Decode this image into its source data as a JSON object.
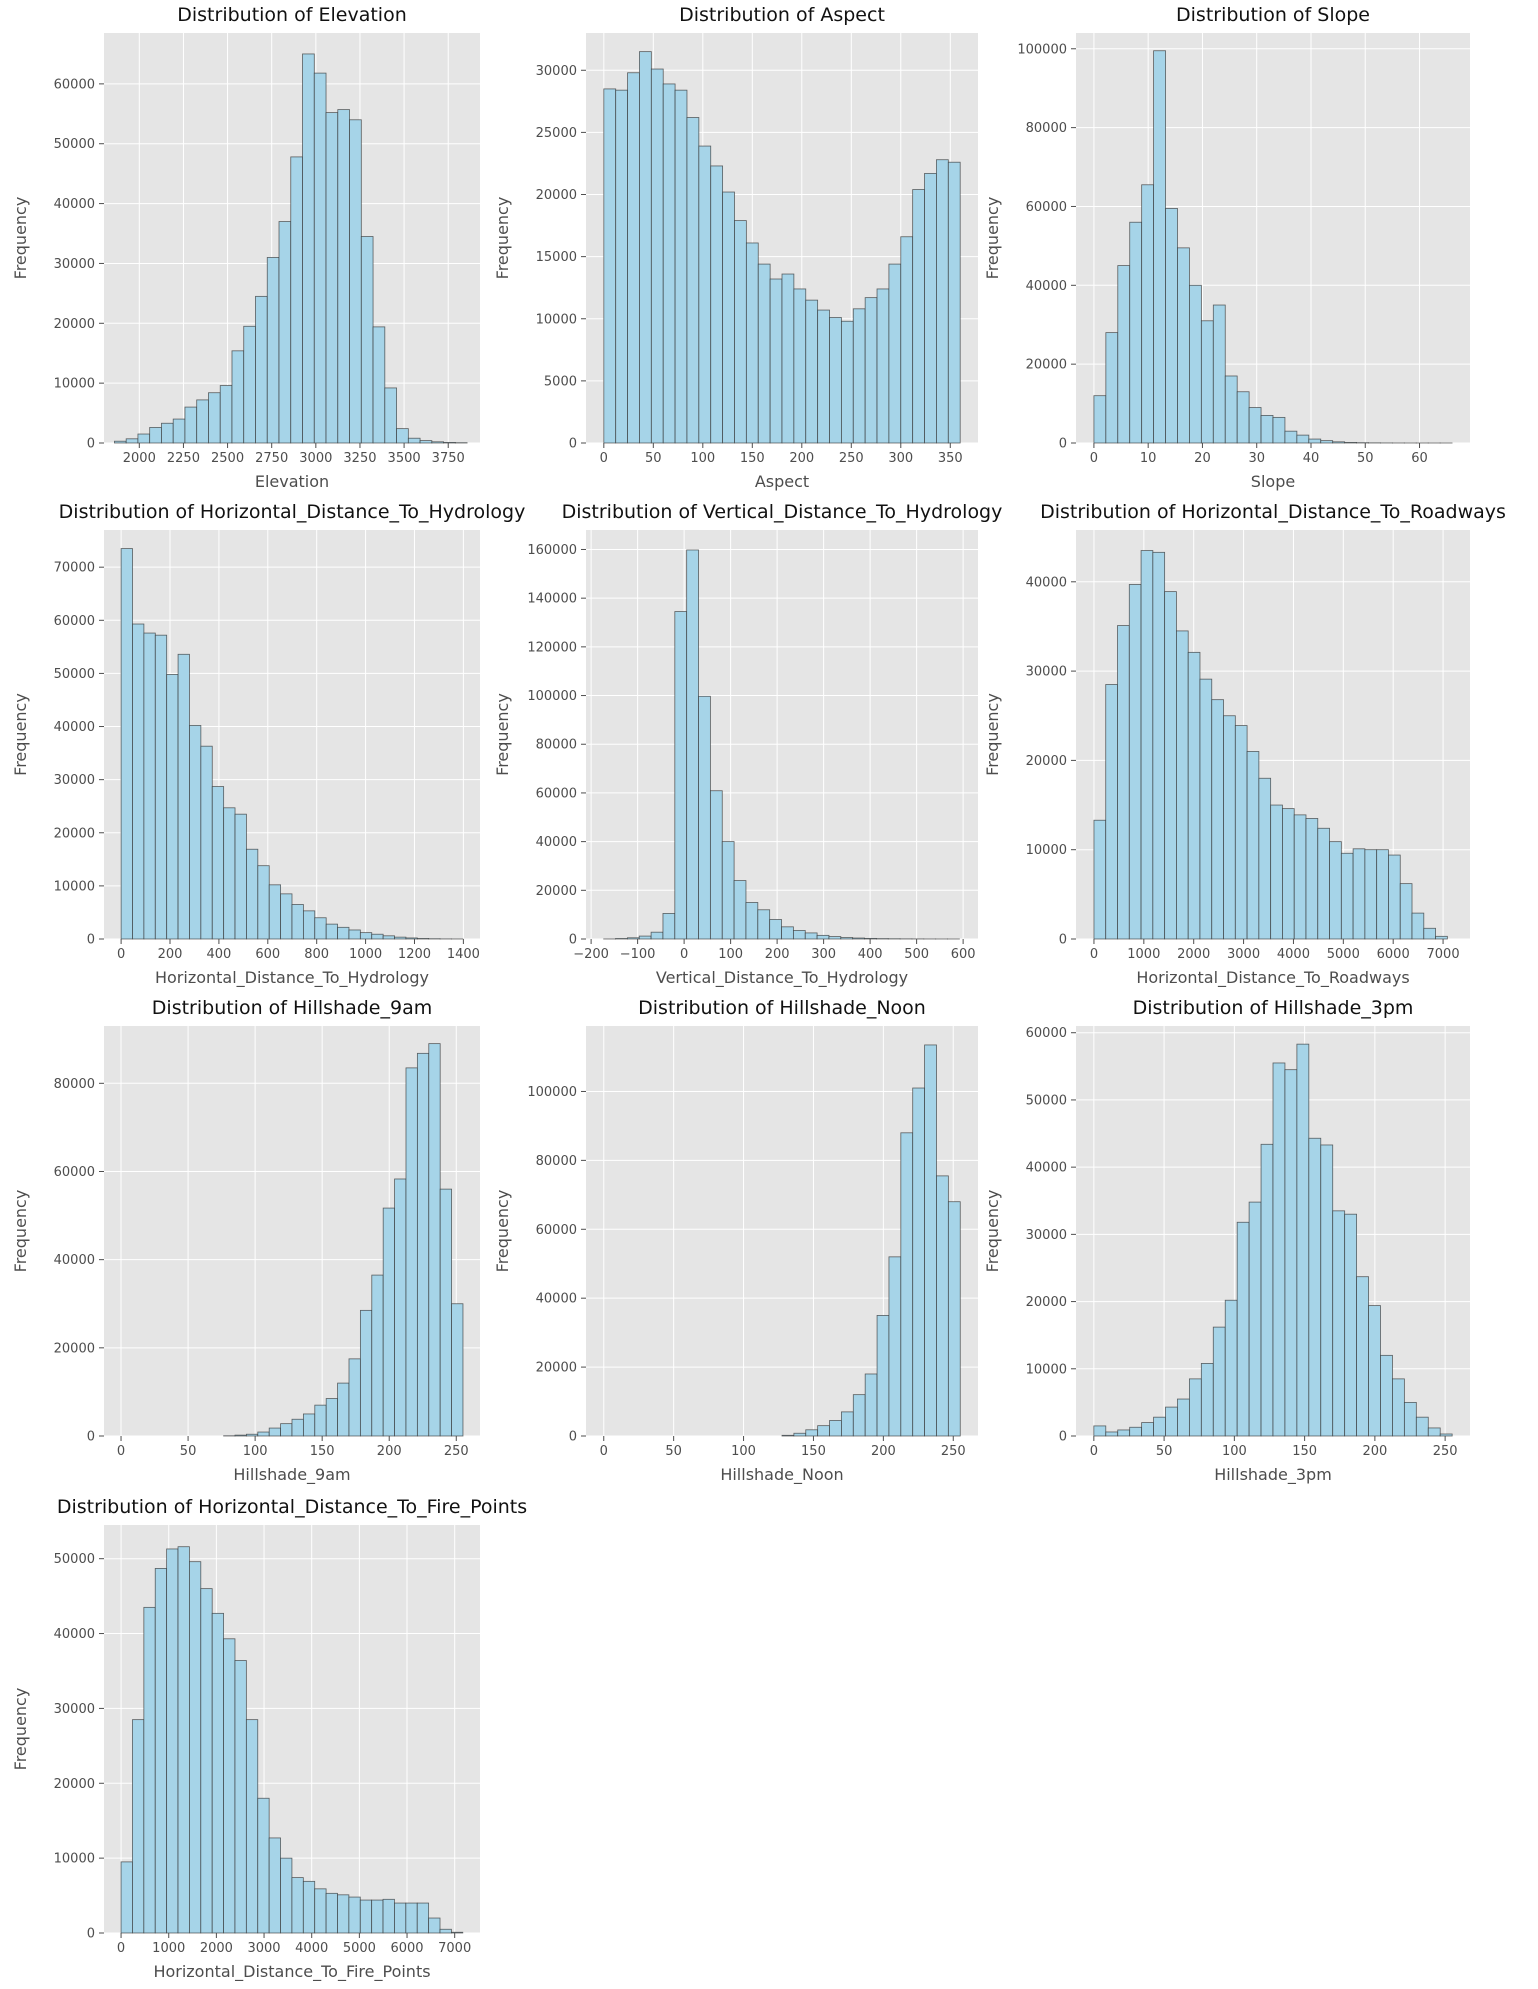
{
  "figure": {
    "bar_color": "#a6d4e8",
    "edge_color": "#333333",
    "panel_bg": "#e5e5e5",
    "grid_color": "#ffffff",
    "text_color": "#4d4d4d"
  },
  "chart_data": [
    {
      "type": "bar",
      "title": "Distribution of Elevation",
      "xlabel": "Elevation",
      "ylabel": "Frequency",
      "xlim": [
        1800,
        3930
      ],
      "ylim": [
        0,
        68500
      ],
      "xticks": [
        2000,
        2250,
        2500,
        2750,
        3000,
        3250,
        3500,
        3750
      ],
      "xtick_labels": [
        "2000",
        "2250",
        "2500",
        "2750",
        "3000",
        "3250",
        "3500",
        "3750"
      ],
      "yticks": [
        0,
        10000,
        20000,
        30000,
        40000,
        50000,
        60000
      ],
      "ytick_labels": [
        "0",
        "10000",
        "20000",
        "30000",
        "40000",
        "50000",
        "60000"
      ],
      "bin_start": 1859,
      "bin_width": 66.6,
      "values": [
        300,
        700,
        1500,
        2600,
        3300,
        4000,
        6000,
        7200,
        8400,
        9600,
        15400,
        19500,
        24500,
        31000,
        37000,
        47800,
        65000,
        61800,
        55200,
        55700,
        54000,
        34500,
        19400,
        9200,
        2400,
        800,
        400,
        200,
        100,
        50
      ]
    },
    {
      "type": "bar",
      "title": "Distribution of Aspect",
      "xlabel": "Aspect",
      "ylabel": "Frequency",
      "xlim": [
        -18,
        378
      ],
      "ylim": [
        0,
        33000
      ],
      "xticks": [
        0,
        50,
        100,
        150,
        200,
        250,
        300,
        350
      ],
      "xtick_labels": [
        "0",
        "50",
        "100",
        "150",
        "200",
        "250",
        "300",
        "350"
      ],
      "yticks": [
        0,
        5000,
        10000,
        15000,
        20000,
        25000,
        30000
      ],
      "ytick_labels": [
        "0",
        "5000",
        "10000",
        "15000",
        "20000",
        "25000",
        "30000"
      ],
      "bin_start": 0,
      "bin_width": 12,
      "values": [
        28500,
        28400,
        29800,
        31500,
        30100,
        28900,
        28400,
        26200,
        23900,
        22300,
        20200,
        17900,
        16100,
        14400,
        13200,
        13600,
        12400,
        11500,
        10700,
        10100,
        9800,
        10800,
        11700,
        12400,
        14400,
        16600,
        20400,
        21700,
        22800,
        22600
      ]
    },
    {
      "type": "bar",
      "title": "Distribution of Slope",
      "xlabel": "Slope",
      "ylabel": "Frequency",
      "xlim": [
        -3.3,
        69.3
      ],
      "ylim": [
        0,
        104000
      ],
      "xticks": [
        0,
        10,
        20,
        30,
        40,
        50,
        60
      ],
      "xtick_labels": [
        "0",
        "10",
        "20",
        "30",
        "40",
        "50",
        "60"
      ],
      "yticks": [
        0,
        20000,
        40000,
        60000,
        80000,
        100000
      ],
      "ytick_labels": [
        "0",
        "20000",
        "40000",
        "60000",
        "80000",
        "100000"
      ],
      "bin_start": 0,
      "bin_width": 2.2,
      "values": [
        12000,
        28000,
        45000,
        56000,
        65500,
        99500,
        59500,
        49500,
        40000,
        31000,
        35000,
        17000,
        13000,
        9000,
        7000,
        6500,
        3000,
        2000,
        1000,
        600,
        300,
        150,
        80,
        40,
        20,
        10,
        5,
        3,
        2,
        1
      ]
    },
    {
      "type": "bar",
      "title": "Distribution of Horizontal_Distance_To_Hydrology",
      "xlabel": "Horizontal_Distance_To_Hydrology",
      "ylabel": "Frequency",
      "xlim": [
        -70,
        1468
      ],
      "ylim": [
        0,
        77000
      ],
      "xticks": [
        0,
        200,
        400,
        600,
        800,
        1000,
        1200,
        1400
      ],
      "xtick_labels": [
        "0",
        "200",
        "400",
        "600",
        "800",
        "1000",
        "1200",
        "1400"
      ],
      "yticks": [
        0,
        10000,
        20000,
        30000,
        40000,
        50000,
        60000,
        70000
      ],
      "ytick_labels": [
        "0",
        "10000",
        "20000",
        "30000",
        "40000",
        "50000",
        "60000",
        "70000"
      ],
      "bin_start": 0,
      "bin_width": 46.6,
      "values": [
        73500,
        59300,
        57600,
        57200,
        49800,
        53600,
        40200,
        36300,
        28700,
        24700,
        23500,
        16900,
        13800,
        10200,
        8500,
        6500,
        5300,
        4000,
        2800,
        2200,
        1700,
        1200,
        900,
        600,
        350,
        200,
        100,
        50,
        20,
        10
      ]
    },
    {
      "type": "bar",
      "title": "Distribution of Vertical_Distance_To_Hydrology",
      "xlabel": "Vertical_Distance_To_Hydrology",
      "ylabel": "Frequency",
      "xlim": [
        -211,
        632
      ],
      "ylim": [
        0,
        168000
      ],
      "xticks": [
        -200,
        -100,
        0,
        100,
        200,
        300,
        400,
        500,
        600
      ],
      "xtick_labels": [
        "−200",
        "−100",
        "0",
        "100",
        "200",
        "300",
        "400",
        "500",
        "600"
      ],
      "yticks": [
        0,
        20000,
        40000,
        60000,
        80000,
        100000,
        120000,
        140000,
        160000
      ],
      "ytick_labels": [
        "0",
        "20000",
        "40000",
        "60000",
        "80000",
        "100000",
        "120000",
        "140000",
        "160000"
      ],
      "bin_start": -173,
      "bin_width": 25.5,
      "values": [
        20,
        200,
        500,
        1200,
        2800,
        10500,
        134500,
        159800,
        99700,
        60900,
        40000,
        24000,
        15000,
        12000,
        8000,
        5000,
        3500,
        2500,
        1500,
        1000,
        600,
        400,
        250,
        150,
        100,
        60,
        40,
        20,
        10,
        5
      ]
    },
    {
      "type": "bar",
      "title": "Distribution of Horizontal_Distance_To_Roadways",
      "xlabel": "Horizontal_Distance_To_Roadways",
      "ylabel": "Frequency",
      "xlim": [
        -360,
        7540
      ],
      "ylim": [
        0,
        45800
      ],
      "xticks": [
        0,
        1000,
        2000,
        3000,
        4000,
        5000,
        6000,
        7000
      ],
      "xtick_labels": [
        "0",
        "1000",
        "2000",
        "3000",
        "4000",
        "5000",
        "6000",
        "7000"
      ],
      "yticks": [
        0,
        10000,
        20000,
        30000,
        40000
      ],
      "ytick_logo": null,
      "ytick_labels": [
        "0",
        "10000",
        "20000",
        "30000",
        "40000"
      ],
      "bin_start": 0,
      "bin_width": 236.2,
      "values": [
        13300,
        28500,
        35100,
        39700,
        43500,
        43300,
        38900,
        34500,
        32100,
        29100,
        26800,
        25000,
        23900,
        21000,
        18000,
        15000,
        14600,
        13900,
        13500,
        12400,
        10900,
        9600,
        10100,
        10000,
        10000,
        9400,
        6200,
        2900,
        1200,
        300
      ]
    },
    {
      "type": "bar",
      "title": "Distribution of Hillshade_9am",
      "xlabel": "Hillshade_9am",
      "ylabel": "Frequency",
      "xlim": [
        -12.7,
        267.7
      ],
      "ylim": [
        0,
        93000
      ],
      "xticks": [
        0,
        50,
        100,
        150,
        200,
        250
      ],
      "xtick_labels": [
        "0",
        "50",
        "100",
        "150",
        "200",
        "250"
      ],
      "yticks": [
        0,
        20000,
        40000,
        60000,
        80000
      ],
      "ytick_labels": [
        "0",
        "20000",
        "40000",
        "60000",
        "80000"
      ],
      "bin_start": 0,
      "bin_width": 8.5,
      "values": [
        0,
        0,
        0,
        0,
        0,
        0,
        0,
        0,
        0,
        50,
        200,
        400,
        900,
        1800,
        2800,
        3800,
        5000,
        7000,
        8500,
        12000,
        17500,
        28500,
        36500,
        51700,
        58300,
        83500,
        86800,
        89000,
        56000,
        30000
      ]
    },
    {
      "type": "bar",
      "title": "Distribution of Hillshade_Noon",
      "xlabel": "Hillshade_Noon",
      "ylabel": "Frequency",
      "xlim": [
        -12.7,
        267.7
      ],
      "ylim": [
        0,
        119000
      ],
      "xticks": [
        0,
        50,
        100,
        150,
        200,
        250
      ],
      "xtick_labels": [
        "0",
        "50",
        "100",
        "150",
        "200",
        "250"
      ],
      "yticks": [
        0,
        20000,
        40000,
        60000,
        80000,
        100000
      ],
      "ytick_labels": [
        "0",
        "20000",
        "40000",
        "60000",
        "80000",
        "100000"
      ],
      "bin_start": 0,
      "bin_width": 8.5,
      "values": [
        0,
        0,
        0,
        0,
        0,
        0,
        0,
        0,
        0,
        0,
        0,
        0,
        0,
        0,
        0,
        200,
        800,
        1800,
        3000,
        4500,
        7000,
        12000,
        18000,
        35000,
        52000,
        88000,
        101000,
        113500,
        75500,
        68000
      ]
    },
    {
      "type": "bar",
      "title": "Distribution of Hillshade_3pm",
      "xlabel": "Hillshade_3pm",
      "ylabel": "Frequency",
      "xlim": [
        -12.7,
        267.7
      ],
      "ylim": [
        0,
        61000
      ],
      "xticks": [
        0,
        50,
        100,
        150,
        200,
        250
      ],
      "xtick_labels": [
        "0",
        "50",
        "100",
        "150",
        "200",
        "250"
      ],
      "yticks": [
        0,
        10000,
        20000,
        30000,
        40000,
        50000,
        60000
      ],
      "ytick_labels": [
        "0",
        "10000",
        "20000",
        "30000",
        "40000",
        "50000",
        "60000"
      ],
      "bin_start": 0,
      "bin_width": 8.5,
      "values": [
        1500,
        600,
        900,
        1300,
        2000,
        2800,
        4300,
        5500,
        8500,
        10800,
        16200,
        20200,
        31800,
        34800,
        43400,
        55500,
        54500,
        58300,
        44300,
        43300,
        33500,
        33000,
        23700,
        19400,
        12000,
        8500,
        5000,
        2800,
        1200,
        300
      ]
    },
    {
      "type": "bar",
      "title": "Distribution of Horizontal_Distance_To_Fire_Points",
      "xlabel": "Horizontal_Distance_To_Fire_Points",
      "ylabel": "Frequency",
      "xlim": [
        -358,
        7531
      ],
      "ylim": [
        0,
        54500
      ],
      "xticks": [
        0,
        1000,
        2000,
        3000,
        4000,
        5000,
        6000,
        7000
      ],
      "xtick_labels": [
        "0",
        "1000",
        "2000",
        "3000",
        "4000",
        "5000",
        "6000",
        "7000"
      ],
      "yticks": [
        0,
        10000,
        20000,
        30000,
        40000,
        50000
      ],
      "ytick_labels": [
        "0",
        "10000",
        "20000",
        "30000",
        "40000",
        "50000"
      ],
      "bin_start": 0,
      "bin_width": 239,
      "values": [
        9500,
        28500,
        43500,
        48700,
        51300,
        51600,
        49600,
        46000,
        42700,
        39300,
        36400,
        28500,
        18000,
        12700,
        10000,
        7400,
        6900,
        5900,
        5300,
        5100,
        4800,
        4400,
        4400,
        4500,
        4000,
        4000,
        4000,
        2000,
        500,
        100
      ]
    }
  ]
}
